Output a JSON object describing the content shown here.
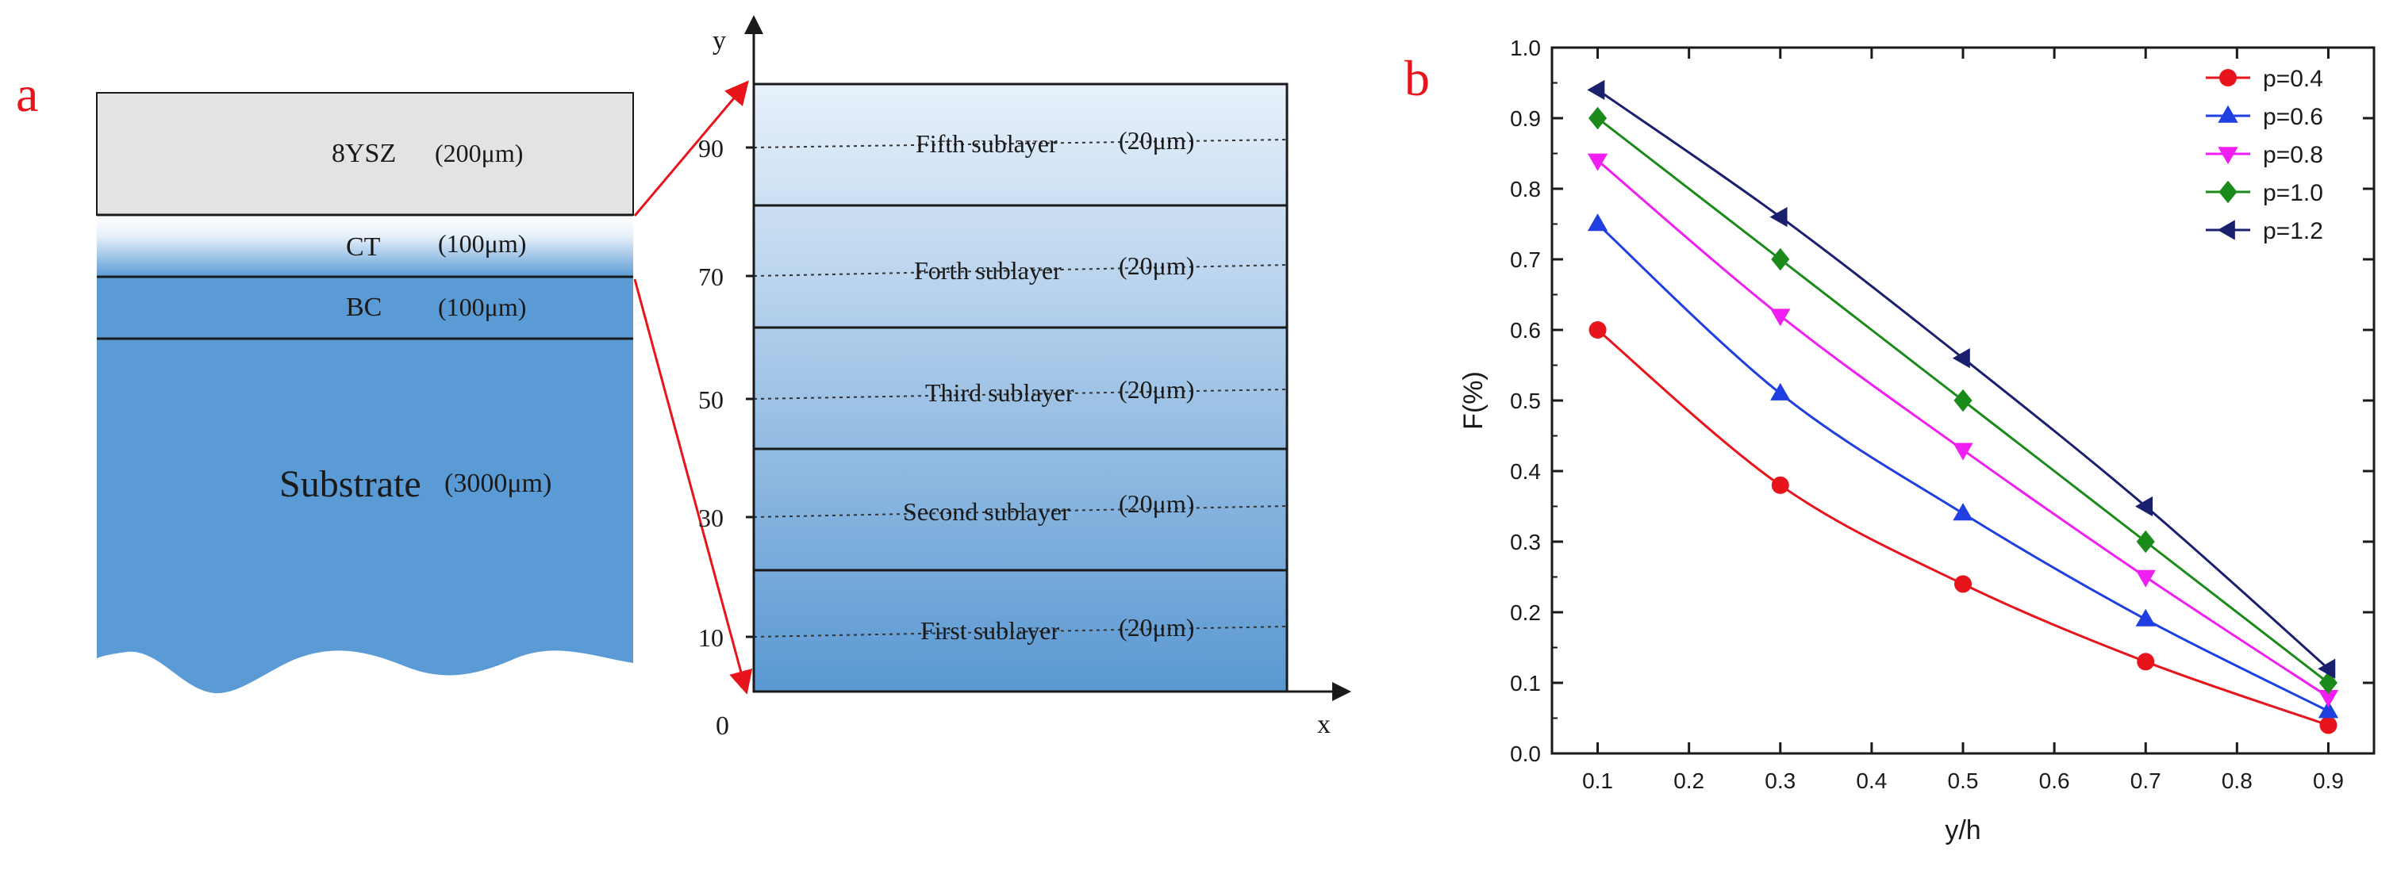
{
  "panel_a": {
    "letter": "a",
    "layers": [
      {
        "name": "8YSZ",
        "thickness": "(200μm)"
      },
      {
        "name": "CT",
        "thickness": "(100μm)"
      },
      {
        "name": "BC",
        "thickness": "(100μm)"
      },
      {
        "name": "Substrate",
        "thickness": "(3000μm)"
      }
    ],
    "detail": {
      "y_axis_label": "y",
      "x_axis_label": "x",
      "origin_label": "0",
      "y_ticks": [
        "10",
        "30",
        "50",
        "70",
        "90"
      ],
      "sublayers": [
        {
          "name": "Fifth sublayer",
          "thickness": "(20μm)"
        },
        {
          "name": "Forth sublayer",
          "thickness": "(20μm)"
        },
        {
          "name": "Third sublayer",
          "thickness": "(20μm)"
        },
        {
          "name": "Second sublayer",
          "thickness": "(20μm)"
        },
        {
          "name": "First sublayer",
          "thickness": "(20μm)"
        }
      ]
    },
    "colors": {
      "ysz": "#e3e3e3",
      "substrate": "#5b9bd5",
      "arrow": "#e8141c"
    }
  },
  "panel_b": {
    "letter": "b"
  },
  "chart_data": {
    "type": "line",
    "title": "",
    "xlabel": "y/h",
    "ylabel": "F(%)",
    "xlim": [
      0.05,
      0.95
    ],
    "ylim": [
      0.0,
      1.0
    ],
    "xticks": [
      "0.1",
      "0.2",
      "0.3",
      "0.4",
      "0.5",
      "0.6",
      "0.7",
      "0.8",
      "0.9"
    ],
    "yticks": [
      "0.0",
      "0.1",
      "0.2",
      "0.3",
      "0.4",
      "0.5",
      "0.6",
      "0.7",
      "0.8",
      "0.9",
      "1.0"
    ],
    "x": [
      0.1,
      0.3,
      0.5,
      0.7,
      0.9
    ],
    "legend_position": "top-right",
    "grid": false,
    "series": [
      {
        "name": "p=0.4",
        "color": "#e8141c",
        "marker": "circle",
        "values": [
          0.6,
          0.38,
          0.24,
          0.13,
          0.04
        ]
      },
      {
        "name": "p=0.6",
        "color": "#1f3fe0",
        "marker": "triangle-up",
        "values": [
          0.75,
          0.51,
          0.34,
          0.19,
          0.06
        ]
      },
      {
        "name": "p=0.8",
        "color": "#f01ef0",
        "marker": "triangle-down",
        "values": [
          0.84,
          0.62,
          0.43,
          0.25,
          0.08
        ]
      },
      {
        "name": "p=1.0",
        "color": "#1a8a1a",
        "marker": "diamond",
        "values": [
          0.9,
          0.7,
          0.5,
          0.3,
          0.1
        ]
      },
      {
        "name": "p=1.2",
        "color": "#1a1f6e",
        "marker": "triangle-left",
        "values": [
          0.94,
          0.76,
          0.56,
          0.35,
          0.12
        ]
      }
    ]
  }
}
